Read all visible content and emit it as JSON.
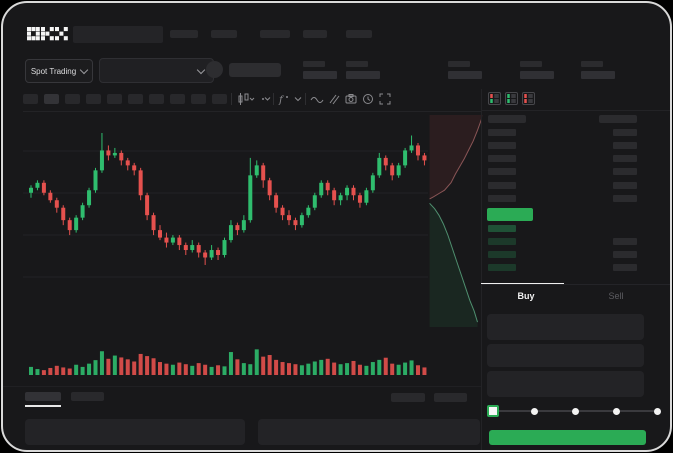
{
  "app": {
    "brand": "OKX"
  },
  "toolbar": {
    "market_selector_label": "Spot Trading"
  },
  "trade_panel": {
    "buy_tab": "Buy",
    "sell_tab": "Sell",
    "slider_steps": 5,
    "slider_value_index": 0,
    "order_input_count": 3
  },
  "colors": {
    "bg": "#18181a",
    "green": "#2bab55",
    "candle_green": "#2fbd6e",
    "candle_red": "#e5514e",
    "skeleton": "#29292c",
    "grid": "#222225",
    "white": "#f2f2f2"
  },
  "skeleton": {
    "top_nav_items": 5,
    "ticker_stats": 5,
    "timeframe_buttons": 10,
    "chart_tool_icons": [
      "chart-type-icon",
      "style-chevron-icon",
      "indicators-icon",
      "indicators-chevron-icon",
      "wave-icon",
      "compare-icon",
      "camera-icon",
      "clock-icon",
      "fullscreen-icon"
    ],
    "orderbook_view_icons": [
      "book-all-icon",
      "book-bids-icon",
      "book-asks-icon"
    ],
    "ask_rows": 6,
    "bid_rows": 4,
    "bottom_tabs": 2,
    "bottom_right_buttons": 2,
    "bottom_panels": 2
  },
  "chart_data": {
    "type": "candlestick",
    "title": "",
    "xlabel": "",
    "ylabel": "",
    "ylim": [
      0,
      100
    ],
    "grid": true,
    "note_scale": "values estimated 0-100 from unlabeled dark-theme chart",
    "candles": [
      [
        61,
        64,
        59,
        63
      ],
      [
        63,
        66,
        62,
        65
      ],
      [
        65,
        66,
        60,
        61
      ],
      [
        61,
        62,
        57,
        58
      ],
      [
        58,
        59,
        53,
        55
      ],
      [
        55,
        56,
        48,
        50
      ],
      [
        50,
        51,
        44,
        46
      ],
      [
        46,
        52,
        45,
        51
      ],
      [
        51,
        57,
        50,
        56
      ],
      [
        56,
        63,
        55,
        62
      ],
      [
        62,
        71,
        61,
        70
      ],
      [
        70,
        85,
        69,
        78
      ],
      [
        78,
        80,
        74,
        76
      ],
      [
        76,
        79,
        75,
        77
      ],
      [
        77,
        78,
        72,
        74
      ],
      [
        74,
        75,
        70,
        72
      ],
      [
        72,
        73,
        68,
        70
      ],
      [
        70,
        71,
        58,
        60
      ],
      [
        60,
        61,
        50,
        52
      ],
      [
        52,
        53,
        44,
        46
      ],
      [
        46,
        48,
        42,
        43
      ],
      [
        43,
        45,
        39,
        41
      ],
      [
        41,
        44,
        40,
        43
      ],
      [
        43,
        44,
        38,
        40
      ],
      [
        40,
        41,
        36,
        38
      ],
      [
        38,
        42,
        37,
        40
      ],
      [
        40,
        41,
        35,
        37
      ],
      [
        37,
        38,
        32,
        35
      ],
      [
        35,
        40,
        34,
        38
      ],
      [
        38,
        39,
        34,
        36
      ],
      [
        36,
        43,
        35,
        42
      ],
      [
        42,
        50,
        41,
        48
      ],
      [
        48,
        49,
        44,
        46
      ],
      [
        46,
        52,
        45,
        50
      ],
      [
        50,
        75,
        49,
        68
      ],
      [
        68,
        74,
        67,
        72
      ],
      [
        72,
        73,
        63,
        66
      ],
      [
        66,
        67,
        58,
        60
      ],
      [
        60,
        61,
        53,
        55
      ],
      [
        55,
        56,
        50,
        52
      ],
      [
        52,
        54,
        48,
        50
      ],
      [
        50,
        51,
        46,
        48
      ],
      [
        48,
        53,
        47,
        52
      ],
      [
        52,
        56,
        51,
        55
      ],
      [
        55,
        61,
        54,
        60
      ],
      [
        60,
        66,
        59,
        65
      ],
      [
        65,
        66,
        60,
        62
      ],
      [
        62,
        63,
        56,
        58
      ],
      [
        58,
        61,
        56,
        60
      ],
      [
        60,
        64,
        58,
        63
      ],
      [
        63,
        64,
        58,
        60
      ],
      [
        60,
        61,
        55,
        57
      ],
      [
        57,
        63,
        56,
        62
      ],
      [
        62,
        69,
        61,
        68
      ],
      [
        68,
        77,
        67,
        75
      ],
      [
        75,
        76,
        70,
        72
      ],
      [
        72,
        73,
        66,
        68
      ],
      [
        68,
        73,
        67,
        72
      ],
      [
        72,
        79,
        71,
        78
      ],
      [
        78,
        84,
        77,
        80
      ],
      [
        80,
        81,
        74,
        76
      ],
      [
        76,
        77,
        72,
        74
      ]
    ],
    "volumes": [
      30,
      22,
      18,
      26,
      34,
      28,
      24,
      38,
      30,
      42,
      55,
      88,
      60,
      72,
      65,
      58,
      50,
      78,
      70,
      62,
      48,
      42,
      38,
      46,
      40,
      34,
      44,
      38,
      30,
      36,
      32,
      85,
      58,
      44,
      40,
      95,
      68,
      74,
      56,
      48,
      44,
      40,
      36,
      42,
      50,
      56,
      60,
      46,
      40,
      44,
      52,
      38,
      34,
      48,
      56,
      64,
      42,
      38,
      46,
      54,
      36,
      28
    ],
    "depth": {
      "asks": [
        [
          0.03,
          0.385
        ],
        [
          0.1,
          0.375
        ],
        [
          0.2,
          0.36
        ],
        [
          0.3,
          0.345
        ],
        [
          0.42,
          0.31
        ],
        [
          0.5,
          0.27
        ],
        [
          0.58,
          0.235
        ],
        [
          0.66,
          0.2
        ],
        [
          0.74,
          0.16
        ],
        [
          0.82,
          0.12
        ],
        [
          0.9,
          0.07
        ],
        [
          0.97,
          0.02
        ]
      ],
      "bids": [
        [
          0.03,
          0.405
        ],
        [
          0.12,
          0.43
        ],
        [
          0.2,
          0.46
        ],
        [
          0.28,
          0.5
        ],
        [
          0.36,
          0.55
        ],
        [
          0.44,
          0.61
        ],
        [
          0.52,
          0.67
        ],
        [
          0.6,
          0.73
        ],
        [
          0.68,
          0.79
        ],
        [
          0.76,
          0.85
        ],
        [
          0.84,
          0.9
        ],
        [
          0.9,
          0.95
        ]
      ]
    }
  }
}
